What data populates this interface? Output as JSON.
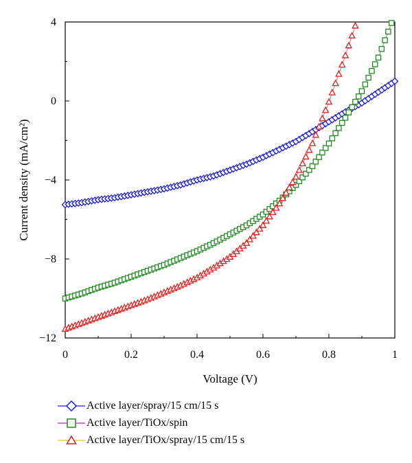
{
  "chart_data": {
    "type": "scatter",
    "xlabel": "Voltage (V)",
    "ylabel": "Current density (mA/cm²)",
    "xlim": [
      0,
      1
    ],
    "ylim": [
      -12,
      4
    ],
    "x_ticks": [
      "0",
      "0.2",
      "0.4",
      "0.6",
      "0.8",
      "1"
    ],
    "y_ticks": [
      "4",
      "0",
      "−4",
      "−8",
      "−12"
    ],
    "y_tick_values": [
      4,
      0,
      -4,
      -8,
      -12
    ],
    "grid": false,
    "legend_position": "bottom",
    "series": [
      {
        "name": "Active layer/spray/15 cm/15 s",
        "marker": "diamond",
        "marker_color": "#1a1adc",
        "line_color": "#1a1adc",
        "x": [
          0,
          0.05,
          0.1,
          0.15,
          0.2,
          0.25,
          0.3,
          0.35,
          0.4,
          0.45,
          0.5,
          0.55,
          0.6,
          0.65,
          0.7,
          0.75,
          0.8,
          0.85,
          0.9,
          0.95,
          1.0
        ],
        "y": [
          -5.25,
          -5.15,
          -5.0,
          -4.9,
          -4.75,
          -4.6,
          -4.45,
          -4.25,
          -4.0,
          -3.8,
          -3.5,
          -3.2,
          -2.85,
          -2.45,
          -2.05,
          -1.55,
          -1.05,
          -0.55,
          -0.1,
          0.45,
          1.0
        ]
      },
      {
        "name": "Active layer/TiOx/spin",
        "marker": "square",
        "marker_color": "#1f8a1f",
        "line_color": "#c41fc4",
        "x": [
          0,
          0.05,
          0.1,
          0.15,
          0.2,
          0.25,
          0.3,
          0.35,
          0.4,
          0.45,
          0.5,
          0.55,
          0.6,
          0.65,
          0.7,
          0.75,
          0.8,
          0.85,
          0.9,
          0.95,
          0.99
        ],
        "y": [
          -10.0,
          -9.75,
          -9.45,
          -9.2,
          -8.9,
          -8.6,
          -8.3,
          -7.95,
          -7.6,
          -7.2,
          -6.75,
          -6.3,
          -5.75,
          -5.05,
          -4.25,
          -3.3,
          -2.15,
          -0.85,
          0.5,
          2.2,
          3.95
        ]
      },
      {
        "name": "Active layer/TiOx/spray/15 cm/15 s",
        "marker": "triangle",
        "marker_color": "#e01f1f",
        "line_color": "#e0c81f",
        "x": [
          0,
          0.05,
          0.1,
          0.15,
          0.2,
          0.25,
          0.3,
          0.35,
          0.4,
          0.45,
          0.5,
          0.55,
          0.6,
          0.65,
          0.7,
          0.75,
          0.8,
          0.85,
          0.88
        ],
        "y": [
          -11.55,
          -11.25,
          -10.95,
          -10.65,
          -10.35,
          -10.05,
          -9.7,
          -9.35,
          -8.95,
          -8.45,
          -7.9,
          -7.2,
          -6.3,
          -5.2,
          -3.85,
          -2.15,
          -0.05,
          2.3,
          3.8
        ]
      }
    ]
  },
  "legend": {
    "items": [
      {
        "label": "Active layer/spray/15 cm/15 s"
      },
      {
        "label": "Active layer/TiOx/spin"
      },
      {
        "label": "Active layer/TiOx/spray/15 cm/15 s"
      }
    ]
  }
}
